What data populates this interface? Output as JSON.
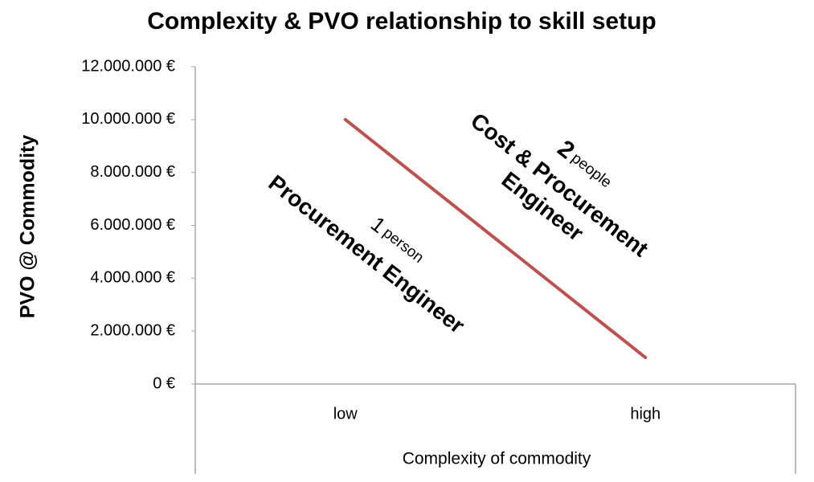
{
  "chart_data": {
    "type": "line",
    "title": "Complexity & PVO relationship to skill setup",
    "y_label": "PVO @ Commodity",
    "x_label": "Complexity of commodity",
    "categories": [
      "low",
      "high"
    ],
    "values": [
      10000000,
      1000000
    ],
    "color": "#c0504d",
    "ylim": [
      0,
      12000000
    ],
    "yticks": [
      {
        "value": 0,
        "label": "0 €"
      },
      {
        "value": 2000000,
        "label": "2.000.000 €"
      },
      {
        "value": 4000000,
        "label": "4.000.000 €"
      },
      {
        "value": 6000000,
        "label": "6.000.000 €"
      },
      {
        "value": 8000000,
        "label": "8.000.000 €"
      },
      {
        "value": 10000000,
        "label": "10.000.000 €"
      },
      {
        "value": 12000000,
        "label": "12.000.000 €"
      }
    ],
    "grid": false,
    "annotations": [
      {
        "count": "2",
        "unit": "people",
        "role_lines": [
          "Cost & Procurement",
          "Engineer"
        ]
      },
      {
        "count": "1",
        "unit": "person",
        "role_lines": [
          "Procurement Engineer"
        ]
      }
    ]
  }
}
